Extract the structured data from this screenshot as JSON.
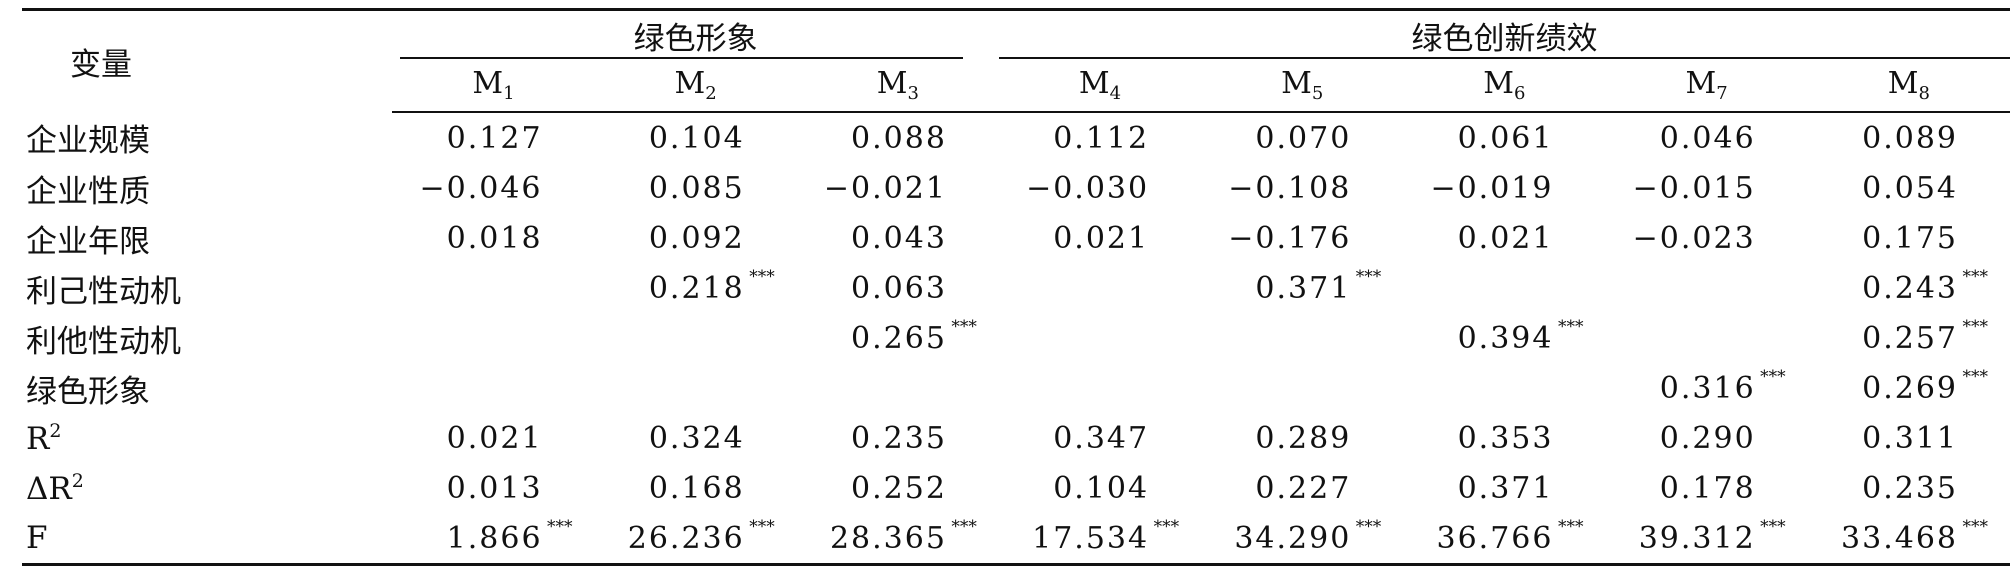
{
  "table": {
    "var_header": "变量",
    "groups": [
      {
        "label": "绿色形象",
        "span": 3
      },
      {
        "label": "绿色创新绩效",
        "span": 5
      }
    ],
    "models": [
      {
        "base": "M",
        "sub": "1"
      },
      {
        "base": "M",
        "sub": "2"
      },
      {
        "base": "M",
        "sub": "3"
      },
      {
        "base": "M",
        "sub": "4"
      },
      {
        "base": "M",
        "sub": "5"
      },
      {
        "base": "M",
        "sub": "6"
      },
      {
        "base": "M",
        "sub": "7"
      },
      {
        "base": "M",
        "sub": "8"
      }
    ],
    "rows": [
      {
        "label": "企业规模",
        "label_sup": "",
        "cells": [
          {
            "v": "0.127",
            "s": ""
          },
          {
            "v": "0.104",
            "s": ""
          },
          {
            "v": "0.088",
            "s": ""
          },
          {
            "v": "0.112",
            "s": ""
          },
          {
            "v": "0.070",
            "s": ""
          },
          {
            "v": "0.061",
            "s": ""
          },
          {
            "v": "0.046",
            "s": ""
          },
          {
            "v": "0.089",
            "s": ""
          }
        ]
      },
      {
        "label": "企业性质",
        "label_sup": "",
        "cells": [
          {
            "v": "−0.046",
            "s": ""
          },
          {
            "v": "0.085",
            "s": ""
          },
          {
            "v": "−0.021",
            "s": ""
          },
          {
            "v": "−0.030",
            "s": ""
          },
          {
            "v": "−0.108",
            "s": ""
          },
          {
            "v": "−0.019",
            "s": ""
          },
          {
            "v": "−0.015",
            "s": ""
          },
          {
            "v": "0.054",
            "s": ""
          }
        ]
      },
      {
        "label": "企业年限",
        "label_sup": "",
        "cells": [
          {
            "v": "0.018",
            "s": ""
          },
          {
            "v": "0.092",
            "s": ""
          },
          {
            "v": "0.043",
            "s": ""
          },
          {
            "v": "0.021",
            "s": ""
          },
          {
            "v": "−0.176",
            "s": ""
          },
          {
            "v": "0.021",
            "s": ""
          },
          {
            "v": "−0.023",
            "s": ""
          },
          {
            "v": "0.175",
            "s": ""
          }
        ]
      },
      {
        "label": "利己性动机",
        "label_sup": "",
        "cells": [
          {
            "v": "",
            "s": ""
          },
          {
            "v": "0.218",
            "s": "***"
          },
          {
            "v": "0.063",
            "s": ""
          },
          {
            "v": "",
            "s": ""
          },
          {
            "v": "0.371",
            "s": "***"
          },
          {
            "v": "",
            "s": ""
          },
          {
            "v": "",
            "s": ""
          },
          {
            "v": "0.243",
            "s": "***"
          }
        ]
      },
      {
        "label": "利他性动机",
        "label_sup": "",
        "cells": [
          {
            "v": "",
            "s": ""
          },
          {
            "v": "",
            "s": ""
          },
          {
            "v": "0.265",
            "s": "***"
          },
          {
            "v": "",
            "s": ""
          },
          {
            "v": "",
            "s": ""
          },
          {
            "v": "0.394",
            "s": "***"
          },
          {
            "v": "",
            "s": ""
          },
          {
            "v": "0.257",
            "s": "***"
          }
        ]
      },
      {
        "label": "绿色形象",
        "label_sup": "",
        "cells": [
          {
            "v": "",
            "s": ""
          },
          {
            "v": "",
            "s": ""
          },
          {
            "v": "",
            "s": ""
          },
          {
            "v": "",
            "s": ""
          },
          {
            "v": "",
            "s": ""
          },
          {
            "v": "",
            "s": ""
          },
          {
            "v": "0.316",
            "s": "***"
          },
          {
            "v": "0.269",
            "s": "***"
          }
        ]
      },
      {
        "label": "R",
        "label_sup": "2",
        "cells": [
          {
            "v": "0.021",
            "s": ""
          },
          {
            "v": "0.324",
            "s": ""
          },
          {
            "v": "0.235",
            "s": ""
          },
          {
            "v": "0.347",
            "s": ""
          },
          {
            "v": "0.289",
            "s": ""
          },
          {
            "v": "0.353",
            "s": ""
          },
          {
            "v": "0.290",
            "s": ""
          },
          {
            "v": "0.311",
            "s": ""
          }
        ]
      },
      {
        "label": "ΔR",
        "label_sup": "2",
        "cells": [
          {
            "v": "0.013",
            "s": ""
          },
          {
            "v": "0.168",
            "s": ""
          },
          {
            "v": "0.252",
            "s": ""
          },
          {
            "v": "0.104",
            "s": ""
          },
          {
            "v": "0.227",
            "s": ""
          },
          {
            "v": "0.371",
            "s": ""
          },
          {
            "v": "0.178",
            "s": ""
          },
          {
            "v": "0.235",
            "s": ""
          }
        ]
      },
      {
        "label": "F",
        "label_sup": "",
        "cells": [
          {
            "v": "1.866",
            "s": "***"
          },
          {
            "v": "26.236",
            "s": "***"
          },
          {
            "v": "28.365",
            "s": "***"
          },
          {
            "v": "17.534",
            "s": "***"
          },
          {
            "v": "34.290",
            "s": "***"
          },
          {
            "v": "36.766",
            "s": "***"
          },
          {
            "v": "39.312",
            "s": "***"
          },
          {
            "v": "33.468",
            "s": "***"
          }
        ]
      }
    ]
  }
}
